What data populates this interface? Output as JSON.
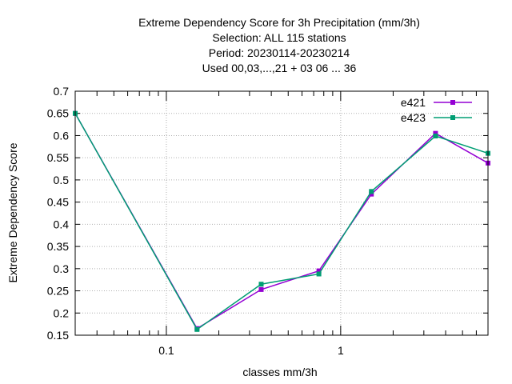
{
  "chart_data": {
    "type": "line",
    "title_lines": [
      "Extreme Dependency Score  for 3h Precipitation (mm/3h)",
      "Selection: ALL    115 stations",
      "Period: 20230114-20230214",
      "Used  00,03,...,21  + 03 06 ... 36"
    ],
    "xlabel": "classes mm/3h",
    "ylabel": "Extreme Dependency Score",
    "x_scale": "log",
    "xlim": [
      0.03,
      7
    ],
    "ylim": [
      0.15,
      0.7
    ],
    "y_ticks": [
      "0.15",
      "0.2",
      "0.25",
      "0.3",
      "0.35",
      "0.4",
      "0.45",
      "0.5",
      "0.55",
      "0.6",
      "0.65",
      "0.7"
    ],
    "x_tick_labels": [
      {
        "value": 0.1,
        "label": "0.1"
      },
      {
        "value": 1,
        "label": "1"
      }
    ],
    "grid": true,
    "legend_position": "top-right",
    "x": [
      0.03,
      0.15,
      0.35,
      0.75,
      1.5,
      3.5,
      7
    ],
    "series": [
      {
        "name": "e421",
        "color": "#9400d3",
        "values": [
          0.65,
          0.165,
          0.253,
          0.295,
          0.468,
          0.605,
          0.538
        ]
      },
      {
        "name": "e423",
        "color": "#009e73",
        "values": [
          0.65,
          0.163,
          0.265,
          0.288,
          0.474,
          0.599,
          0.56
        ]
      }
    ]
  }
}
